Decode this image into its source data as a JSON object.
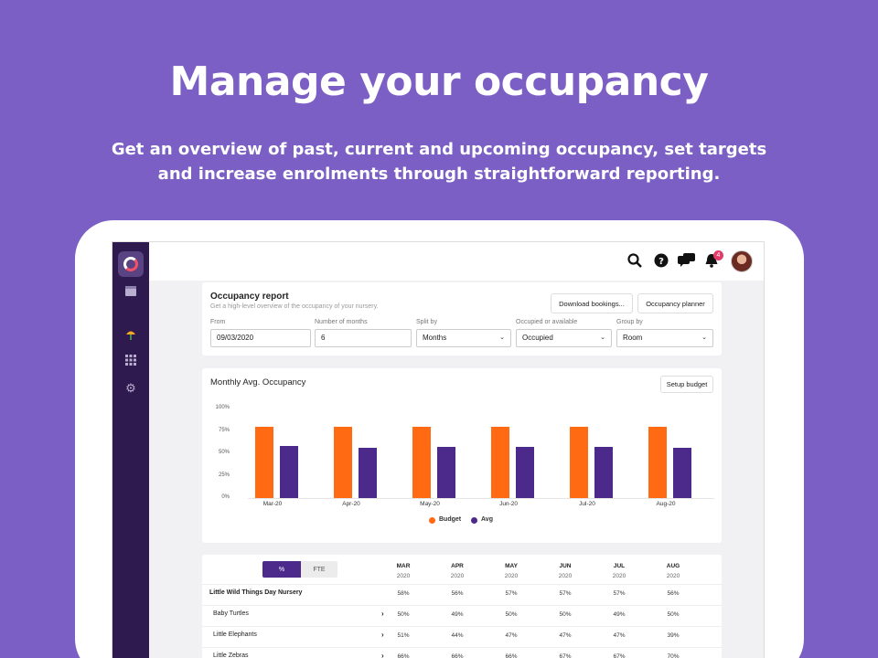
{
  "hero": {
    "title": "Manage your occupancy",
    "subtitle_line1": "Get an overview of past, current and upcoming occupancy, set targets",
    "subtitle_line2": "and increase enrolments through straightforward reporting."
  },
  "topbar": {
    "icons": [
      "search-icon",
      "help-icon",
      "chat-icon",
      "bell-icon"
    ],
    "notification_count": "4"
  },
  "sidebar": {
    "icons": [
      "calendar-icon",
      "umbrella-icon",
      "grid-icon",
      "gear-icon"
    ]
  },
  "report": {
    "title": "Occupancy report",
    "subtitle": "Get a high-level overview of the occupancy of your nursery.",
    "download_label": "Download bookings...",
    "planner_label": "Occupancy planner",
    "filters": {
      "from_label": "From",
      "from_value": "09/03/2020",
      "months_label": "Number of months",
      "months_value": "6",
      "split_label": "Split by",
      "split_value": "Months",
      "occ_label": "Occupied or available",
      "occ_value": "Occupied",
      "group_label": "Group by",
      "group_value": "Room"
    }
  },
  "chart_card": {
    "setup_label": "Setup budget"
  },
  "chart_data": {
    "type": "bar",
    "title": "Monthly Avg. Occupancy",
    "categories": [
      "Mar-20",
      "Apr-20",
      "May-20",
      "Jun-20",
      "Jul-20",
      "Aug-20"
    ],
    "series": [
      {
        "name": "Budget",
        "values": [
          80,
          80,
          80,
          80,
          80,
          80
        ],
        "color": "#ff6a13"
      },
      {
        "name": "Avg",
        "values": [
          58,
          56,
          57,
          57,
          57,
          56
        ],
        "color": "#4b2a8c"
      }
    ],
    "ylim": [
      0,
      100
    ],
    "yticks": [
      "100%",
      "75%",
      "50%",
      "25%",
      "0%"
    ],
    "legend": "bottom-center"
  },
  "table": {
    "toggle": {
      "percent_label": "%",
      "fte_label": "FTE"
    },
    "columns": [
      {
        "month": "MAR",
        "year": "2020"
      },
      {
        "month": "APR",
        "year": "2020"
      },
      {
        "month": "MAY",
        "year": "2020"
      },
      {
        "month": "JUN",
        "year": "2020"
      },
      {
        "month": "JUL",
        "year": "2020"
      },
      {
        "month": "AUG",
        "year": "2020"
      }
    ],
    "rows": [
      {
        "name": "Little Wild Things Day Nursery",
        "values": [
          "58%",
          "56%",
          "57%",
          "57%",
          "57%",
          "56%"
        ]
      },
      {
        "name": "Baby Turtles",
        "values": [
          "50%",
          "49%",
          "50%",
          "50%",
          "49%",
          "50%"
        ]
      },
      {
        "name": "Little Elephants",
        "values": [
          "51%",
          "44%",
          "47%",
          "47%",
          "47%",
          "39%"
        ]
      },
      {
        "name": "Little Zebras",
        "values": [
          "66%",
          "66%",
          "66%",
          "67%",
          "67%",
          "70%"
        ]
      }
    ]
  },
  "colors": {
    "background": "#7b5fc4",
    "sidebar": "#2e1a4e",
    "budget": "#ff6a13",
    "avg": "#4b2a8c"
  }
}
